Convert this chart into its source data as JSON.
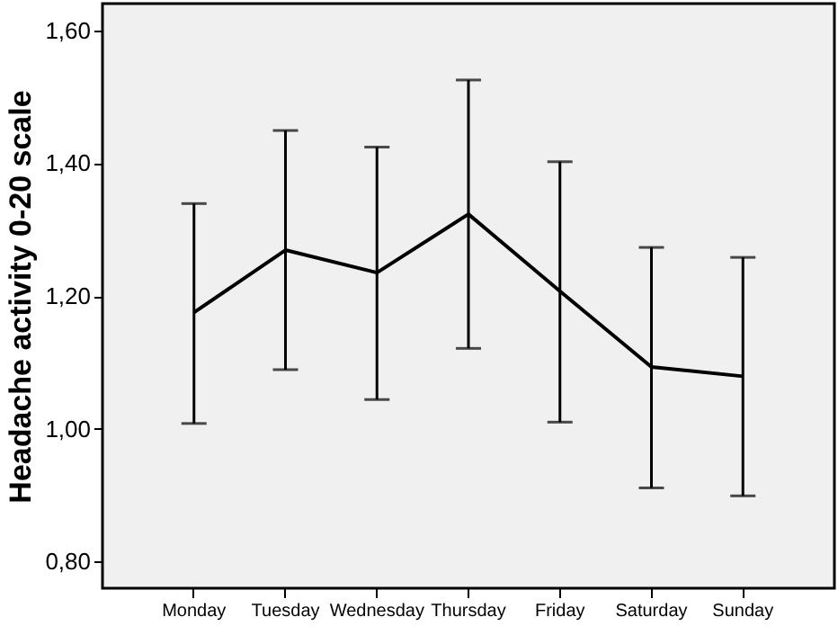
{
  "chart_data": {
    "type": "line",
    "ylabel": "Headache activity 0-20 scale",
    "categories": [
      "Monday",
      "Tuesday",
      "Wednesday",
      "Thursday",
      "Friday",
      "Saturday",
      "Sunday"
    ],
    "values": [
      1.175,
      1.269,
      1.235,
      1.323,
      1.207,
      1.093,
      1.079
    ],
    "errors": [
      [
        1.008,
        1.339
      ],
      [
        1.089,
        1.449
      ],
      [
        1.044,
        1.424
      ],
      [
        1.121,
        1.525
      ],
      [
        1.01,
        1.402
      ],
      [
        0.911,
        1.273
      ],
      [
        0.899,
        1.258
      ]
    ],
    "color": "#000000",
    "marker": "none",
    "line_style": "solid",
    "ylim": [
      0.76,
      1.64
    ],
    "yticks": [
      {
        "value": 0.8,
        "label": "0,80"
      },
      {
        "value": 1.0,
        "label": "1,00"
      },
      {
        "value": 1.2,
        "label": "1,20"
      },
      {
        "value": 1.4,
        "label": "1,40"
      },
      {
        "value": 1.6,
        "label": "1,60"
      }
    ],
    "grid": false
  }
}
